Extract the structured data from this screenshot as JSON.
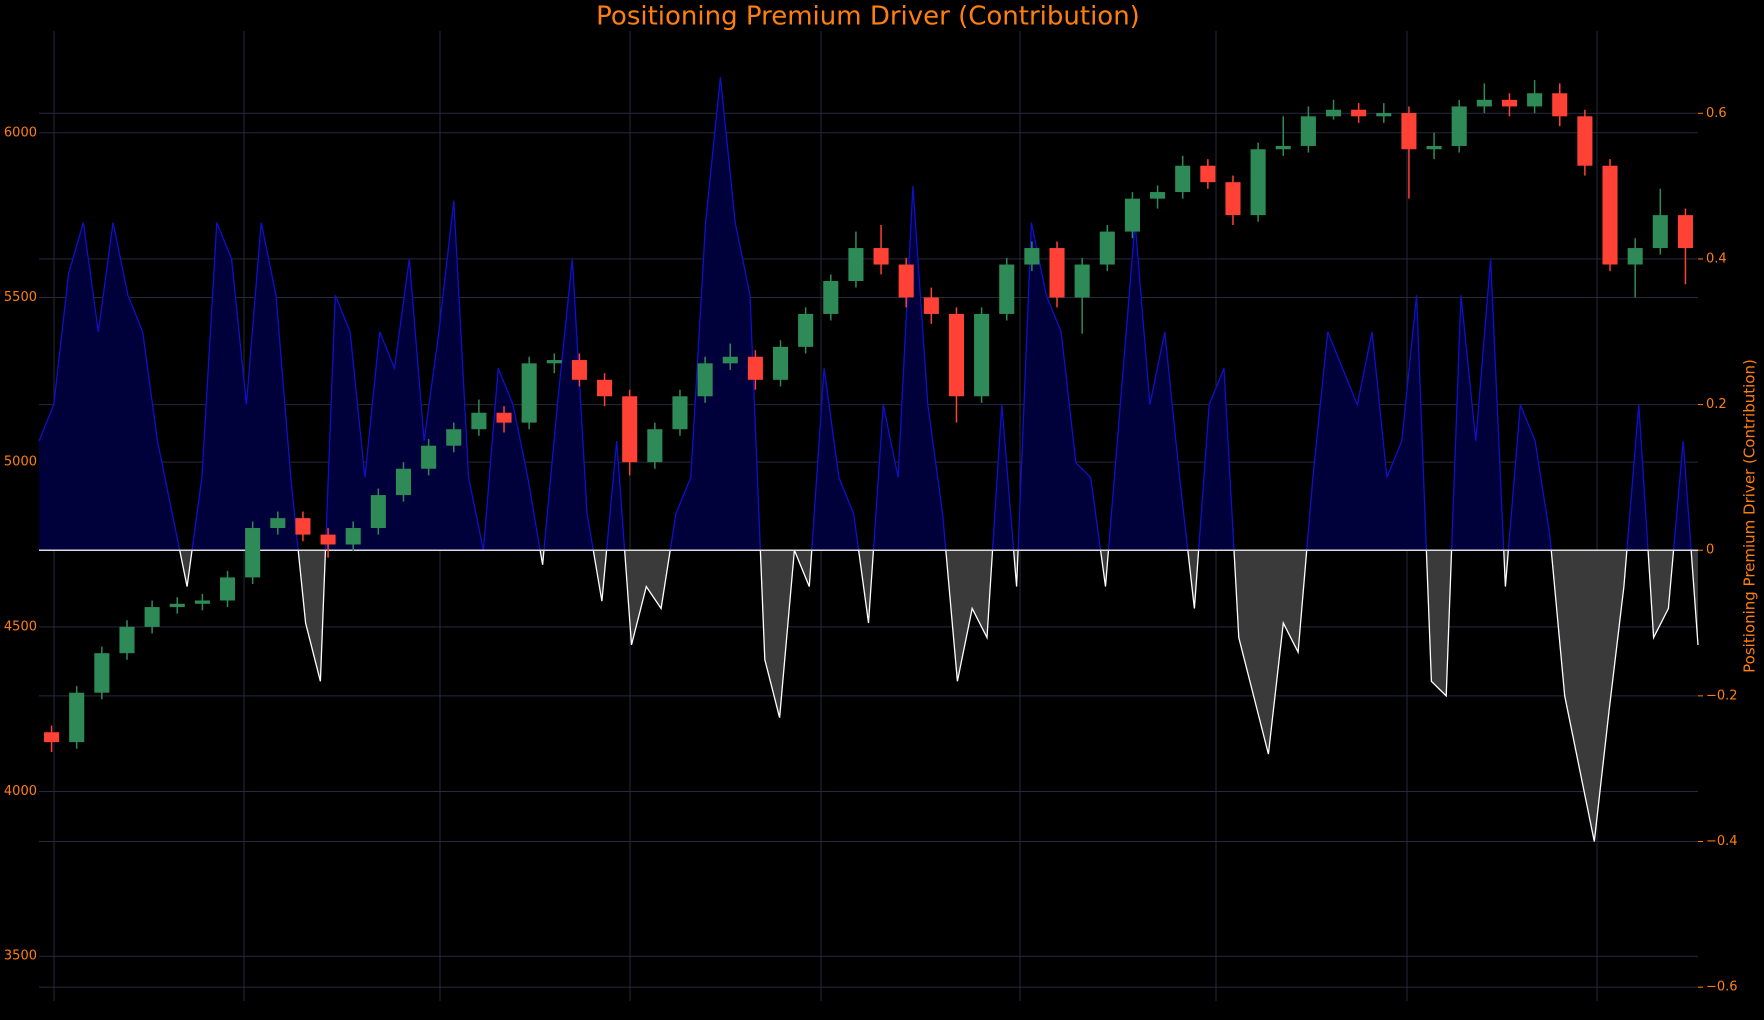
{
  "chart_data": {
    "type": "candlestick",
    "title": "Positioning Premium Driver (Contribution)",
    "y2label": "Positioning Premium Driver (Contribution)",
    "ylim": [
      3364,
      6309
    ],
    "yticks": [
      3500,
      4000,
      4500,
      5000,
      5500,
      6000
    ],
    "y2lim": [
      -0.619,
      0.713
    ],
    "y2ticks": [
      {
        "value": -0.6,
        "label": "−0.6"
      },
      {
        "value": -0.4,
        "label": "−0.4"
      },
      {
        "value": -0.2,
        "label": "−0.2"
      },
      0,
      0.2,
      0.4,
      0.6
    ],
    "grid": true,
    "up_color": "#2e8b57",
    "down_color": "#ff4136",
    "open": [
      4180,
      4150,
      4300,
      4420,
      4500,
      4560,
      4570,
      4580,
      4650,
      4800,
      4830,
      4780,
      4750,
      4800,
      4900,
      4980,
      5050,
      5100,
      5150,
      5120,
      5300,
      5310,
      5250,
      5200,
      5000,
      5100,
      5200,
      5300,
      5320,
      5250,
      5350,
      5450,
      5550,
      5650,
      5600,
      5500,
      5450,
      5200,
      5450,
      5600,
      5650,
      5500,
      5600,
      5700,
      5800,
      5820,
      5900,
      5850,
      5750,
      5950,
      5960,
      6050,
      6070,
      6050,
      6060,
      5950,
      5960,
      6080,
      6100,
      6080,
      6120,
      6050,
      5900,
      5600,
      5650,
      5750
    ],
    "high": [
      4200,
      4320,
      4440,
      4520,
      4580,
      4590,
      4600,
      4670,
      4820,
      4850,
      4850,
      4800,
      4820,
      4920,
      5000,
      5070,
      5120,
      5190,
      5170,
      5320,
      5330,
      5330,
      5270,
      5220,
      5120,
      5220,
      5320,
      5360,
      5340,
      5370,
      5470,
      5570,
      5700,
      5720,
      5620,
      5530,
      5470,
      5470,
      5620,
      5670,
      5670,
      5620,
      5720,
      5820,
      5840,
      5930,
      5920,
      5870,
      5970,
      6050,
      6080,
      6100,
      6090,
      6090,
      6080,
      6000,
      6100,
      6150,
      6120,
      6160,
      6150,
      6070,
      5920,
      5680,
      5830,
      5770
    ],
    "low": [
      4120,
      4130,
      4280,
      4400,
      4480,
      4540,
      4550,
      4560,
      4630,
      4780,
      4760,
      4710,
      4730,
      4780,
      4880,
      4960,
      5030,
      5080,
      5090,
      5100,
      5270,
      5230,
      5170,
      4960,
      4980,
      5080,
      5180,
      5280,
      5220,
      5230,
      5330,
      5430,
      5530,
      5570,
      5470,
      5420,
      5120,
      5180,
      5430,
      5580,
      5470,
      5390,
      5580,
      5680,
      5770,
      5800,
      5830,
      5720,
      5730,
      5930,
      5940,
      6040,
      6030,
      6030,
      5800,
      5920,
      5940,
      6060,
      6050,
      6060,
      6020,
      5870,
      5580,
      5500,
      5630,
      5540
    ],
    "close": [
      4150,
      4300,
      4420,
      4500,
      4560,
      4570,
      4580,
      4650,
      4800,
      4830,
      4780,
      4750,
      4800,
      4900,
      4980,
      5050,
      5100,
      5150,
      5120,
      5300,
      5310,
      5250,
      5200,
      5000,
      5100,
      5200,
      5300,
      5320,
      5250,
      5350,
      5450,
      5550,
      5650,
      5600,
      5500,
      5450,
      5200,
      5450,
      5600,
      5650,
      5500,
      5600,
      5700,
      5800,
      5820,
      5900,
      5850,
      5750,
      5950,
      5960,
      6050,
      6070,
      6050,
      6060,
      5950,
      5960,
      6080,
      6100,
      6080,
      6120,
      6050,
      5900,
      5600,
      5650,
      5750,
      5650
    ],
    "series": [
      {
        "name": "Positioning Premium Driver (Contribution)",
        "axis": "y2",
        "color": "#1010c8",
        "negative_color": "#ffffff",
        "values": [
          0.15,
          0.2,
          0.38,
          0.45,
          0.3,
          0.45,
          0.35,
          0.3,
          0.15,
          0.05,
          -0.05,
          0.1,
          0.45,
          0.4,
          0.2,
          0.45,
          0.35,
          0.1,
          -0.1,
          -0.18,
          0.35,
          0.3,
          0.1,
          0.3,
          0.25,
          0.4,
          0.15,
          0.3,
          0.48,
          0.1,
          0,
          0.25,
          0.2,
          0.1,
          -0.02,
          0.2,
          0.4,
          0.05,
          -0.07,
          0.15,
          -0.13,
          -0.05,
          -0.08,
          0.05,
          0.1,
          0.45,
          0.65,
          0.45,
          0.35,
          -0.15,
          -0.23,
          0,
          -0.05,
          0.25,
          0.1,
          0.05,
          -0.1,
          0.2,
          0.1,
          0.5,
          0.2,
          0.05,
          -0.18,
          -0.08,
          -0.12,
          0.2,
          -0.05,
          0.45,
          0.35,
          0.3,
          0.12,
          0.1,
          -0.05,
          0.2,
          0.45,
          0.2,
          0.3,
          0.1,
          -0.08,
          0.2,
          0.25,
          -0.12,
          -0.2,
          -0.28,
          -0.1,
          -0.14,
          0.1,
          0.3,
          0.25,
          0.2,
          0.3,
          0.1,
          0.15,
          0.35,
          -0.18,
          -0.2,
          0.35,
          0.15,
          0.4,
          -0.05,
          0.2,
          0.15,
          0.02,
          -0.2,
          -0.3,
          -0.4,
          -0.22,
          -0.05,
          0.2,
          -0.12,
          -0.08,
          0.15,
          -0.13
        ]
      }
    ]
  }
}
